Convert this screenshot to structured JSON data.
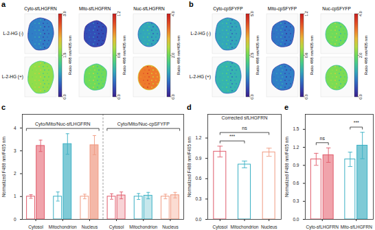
{
  "chart_data": [
    {
      "type": "image",
      "panel": "a",
      "columns": [
        "Cyto-sfLHGFRN",
        "Mito-sfLHGFRN",
        "Nuc-sfLHGFRN"
      ],
      "rows": [
        "L-2-HG (-)",
        "L-2-HG (+)"
      ],
      "colorbars": [
        {
          "label": "Ratio 488 nm/405 nm",
          "range": [
            0,
            3
          ],
          "ticks": [
            {
              "value": 0,
              "label": "0.0"
            },
            {
              "value": 1.5,
              "label": "1.5"
            },
            {
              "value": 3,
              "label": "3.0"
            }
          ]
        },
        {
          "label": "Ratio 488 nm/405 nm",
          "range": [
            0,
            1.2
          ],
          "ticks": [
            {
              "value": 0,
              "label": "0.0"
            },
            {
              "value": 0.6,
              "label": "0.6"
            },
            {
              "value": 1.2,
              "label": "1.2"
            }
          ]
        },
        {
          "label": "Ratio 488 nm/405 nm",
          "range": [
            0,
            4
          ],
          "ticks": [
            {
              "value": 0,
              "label": "0.0"
            },
            {
              "value": 2,
              "label": "2.0"
            },
            {
              "value": 4,
              "label": "4.0"
            }
          ]
        }
      ]
    },
    {
      "type": "image",
      "panel": "b",
      "columns": [
        "Cyto-cpSFYFP",
        "Mito-cpSFYFP",
        "Nuc-cpSFYFP"
      ],
      "rows": [
        "L-2-HG (-)",
        "L-2-HG (+)"
      ],
      "colorbars": [
        {
          "label": "Ratio 488 nm/405 nm",
          "range": [
            0,
            5
          ],
          "ticks": [
            {
              "value": 0,
              "label": "0.0"
            },
            {
              "value": 2.5,
              "label": "2.5"
            },
            {
              "value": 5,
              "label": "5.0"
            }
          ]
        },
        {
          "label": "Ratio 488 nm/405 nm",
          "range": [
            0,
            1.2
          ],
          "ticks": [
            {
              "value": 0,
              "label": "0.0"
            },
            {
              "value": 0.6,
              "label": "0.6"
            },
            {
              "value": 1.2,
              "label": "1.2"
            }
          ]
        },
        {
          "label": "Ratio 488 nm/405 nm",
          "range": [
            0,
            4
          ],
          "ticks": [
            {
              "value": 0,
              "label": "0.0"
            },
            {
              "value": 2,
              "label": "2.0"
            },
            {
              "value": 4,
              "label": "4.0"
            }
          ]
        }
      ]
    },
    {
      "type": "bar",
      "panel": "c",
      "y_label": "Normalized F488 nm/F405 nm",
      "categories": [
        "Cytosol",
        "Mitochondrion",
        "Nucleus",
        "Cytosol",
        "Mitochondrion",
        "Nucleus"
      ],
      "colors": [
        "#e05a6a",
        "#3ab0c4",
        "#f09a80",
        "#e05a6a",
        "#3ab0c4",
        "#f09a80"
      ],
      "series": [
        {
          "color": "#ffffff",
          "values": [
            1.0,
            1.0,
            1.0,
            1.0,
            1.0,
            1.0
          ],
          "errors": [
            0.08,
            0.2,
            0.1,
            0.12,
            0.13,
            0.1
          ]
        },
        {
          "colors": [
            "#f0a3ab",
            "#7fcad6",
            "#f4b8a8",
            "#f8d3d6",
            "#c6e7ec",
            "#fbdcd2"
          ],
          "values": [
            3.22,
            3.3,
            3.25,
            1.05,
            1.04,
            1.06
          ],
          "errors": [
            0.25,
            0.45,
            0.42,
            0.15,
            0.14,
            0.12
          ]
        }
      ],
      "ylim": [
        0,
        4.6
      ],
      "yticks": [
        0,
        1,
        2,
        3,
        4
      ],
      "annotations": [
        "Cyto/Mito/Nuc-sfLHGFRN",
        "Cyto/Mito/Nuc-cpSFYFP"
      ]
    },
    {
      "type": "bar",
      "panel": "d",
      "title": "Corrected sfLHGFRN",
      "y_label": "Normalized F488 nm/F405 nm",
      "categories": [
        "Cytosol",
        "Mitochondrion",
        "Nucleus"
      ],
      "values": [
        1.0,
        0.81,
        0.99
      ],
      "errors": [
        0.08,
        0.05,
        0.06
      ],
      "color": "#ffffff",
      "colors": [
        "#e05a6a",
        "#3ab0c4",
        "#f09a80"
      ],
      "ylim": [
        0,
        1.55
      ],
      "yticks": [
        {
          "value": 0,
          "label": "0.0"
        },
        {
          "value": 0.3,
          "label": "0.3"
        },
        {
          "value": 0.6,
          "label": "0.6"
        },
        {
          "value": 0.9,
          "label": "0.9"
        },
        {
          "value": 1.2,
          "label": "1.2"
        }
      ],
      "annotations": [
        {
          "text": "***",
          "between": [
            "Cytosol",
            "Mitochondrion"
          ]
        },
        {
          "text": "ns",
          "between": [
            "Cytosol",
            "Nucleus"
          ]
        }
      ]
    },
    {
      "type": "bar",
      "panel": "e",
      "y_label": "Normalized F488 nm/F405 nm",
      "categories": [
        "Cyto-sfLHGFRN",
        "Mito-sfLHGFRN"
      ],
      "colors": [
        "#e05a6a",
        "#3ab0c4"
      ],
      "series": [
        {
          "color": "#ffffff",
          "values": [
            1.0,
            1.0
          ],
          "errors": [
            0.1,
            0.12
          ]
        },
        {
          "colors": [
            "#f0a3ab",
            "#7fcad6"
          ],
          "values": [
            1.07,
            1.23
          ],
          "errors": [
            0.12,
            0.22
          ]
        }
      ],
      "ylim": [
        0,
        1.75
      ],
      "yticks": [
        {
          "value": 0,
          "label": "0.0"
        },
        {
          "value": 0.3,
          "label": "0.3"
        },
        {
          "value": 0.6,
          "label": "0.6"
        },
        {
          "value": 0.9,
          "label": "0.9"
        },
        {
          "value": 1.2,
          "label": "1.2"
        },
        {
          "value": 1.5,
          "label": "1.5"
        }
      ],
      "annotations": [
        {
          "text": "ns",
          "between": [
            "Cyto-sfLHGFRN"
          ]
        },
        {
          "text": "***",
          "between": [
            "Mito-sfLHGFRN"
          ]
        }
      ]
    }
  ]
}
